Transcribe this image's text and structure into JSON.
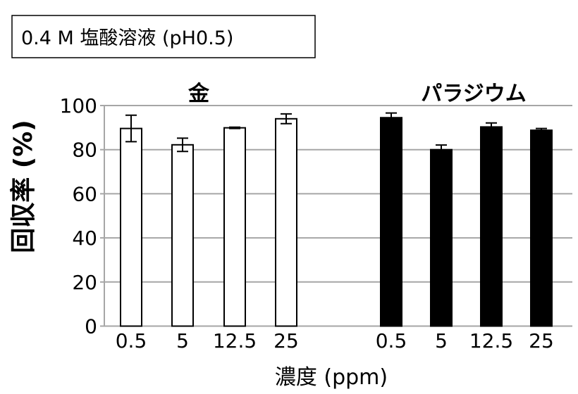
{
  "chart_data": {
    "type": "bar",
    "title": "0.4 M 塩酸溶液 (pH0.5)",
    "xlabel": "濃度 (ppm)",
    "ylabel": "回収率 (%)",
    "ylim": [
      0,
      100
    ],
    "yticks": [
      "0",
      "20",
      "40",
      "60",
      "80",
      "100"
    ],
    "grid": true,
    "groups": [
      {
        "name": "金",
        "color": "#ffffff",
        "categories": [
          "0.5",
          "5",
          "12.5",
          "25"
        ],
        "values": [
          89.6,
          82.2,
          89.9,
          94.0
        ],
        "errors": [
          6.0,
          3.0,
          0.3,
          2.2
        ]
      },
      {
        "name": "パラジウム",
        "color": "#000000",
        "categories": [
          "0.5",
          "5",
          "12.5",
          "25"
        ],
        "values": [
          94.5,
          80.0,
          90.3,
          88.8
        ],
        "errors": [
          2.1,
          2.1,
          1.8,
          0.8
        ]
      }
    ]
  }
}
